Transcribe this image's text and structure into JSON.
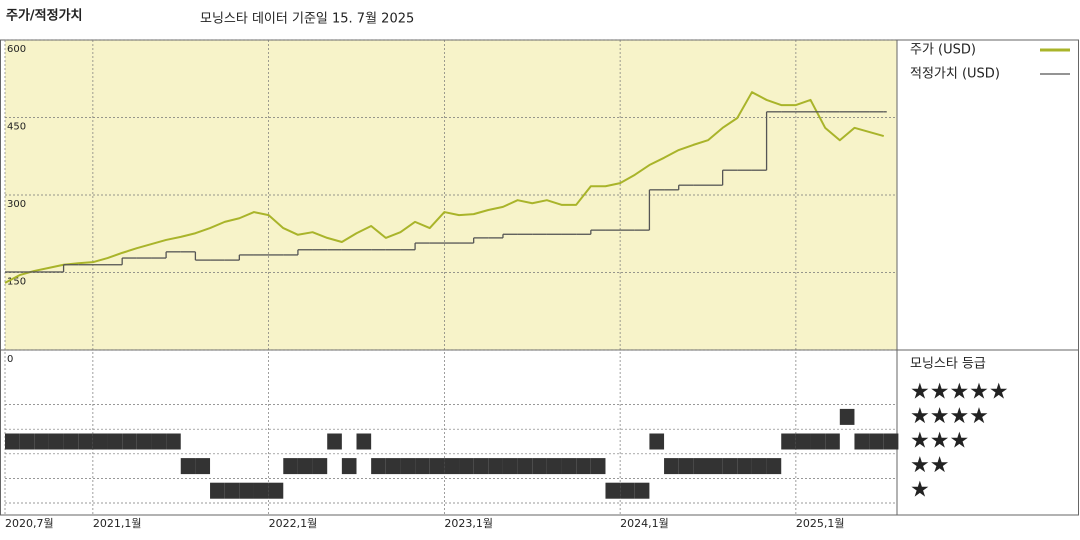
{
  "chart_data": {
    "type": "line",
    "title": "주가/적정가치",
    "subtitle": "모닝스타 데이터 기준일 15. 7월 2025",
    "x": [
      "2020-07",
      "2020-08",
      "2020-09",
      "2020-10",
      "2020-11",
      "2020-12",
      "2021-01",
      "2021-02",
      "2021-03",
      "2021-04",
      "2021-05",
      "2021-06",
      "2021-07",
      "2021-08",
      "2021-09",
      "2021-10",
      "2021-11",
      "2021-12",
      "2022-01",
      "2022-02",
      "2022-03",
      "2022-04",
      "2022-05",
      "2022-06",
      "2022-07",
      "2022-08",
      "2022-09",
      "2022-10",
      "2022-11",
      "2022-12",
      "2023-01",
      "2023-02",
      "2023-03",
      "2023-04",
      "2023-05",
      "2023-06",
      "2023-07",
      "2023-08",
      "2023-09",
      "2023-10",
      "2023-11",
      "2023-12",
      "2024-01",
      "2024-02",
      "2024-03",
      "2024-04",
      "2024-05",
      "2024-06",
      "2024-07",
      "2024-08",
      "2024-09",
      "2024-10",
      "2024-11",
      "2024-12",
      "2025-01",
      "2025-02",
      "2025-03",
      "2025-04",
      "2025-05",
      "2025-06",
      "2025-07"
    ],
    "series": [
      {
        "name": "주가 (USD)",
        "color": "#a9b42a",
        "values": [
          130,
          145,
          153,
          159,
          165,
          168,
          170,
          178,
          188,
          197,
          205,
          213,
          219,
          226,
          236,
          248,
          255,
          267,
          261,
          236,
          223,
          228,
          217,
          209,
          226,
          240,
          217,
          228,
          248,
          236,
          267,
          261,
          263,
          271,
          277,
          290,
          284,
          290,
          281,
          281,
          317,
          317,
          323,
          339,
          358,
          372,
          387,
          397,
          406,
          430,
          449,
          499,
          484,
          474,
          474,
          484,
          430,
          406,
          430,
          422,
          414
        ]
      },
      {
        "name": "적정가치 (USD)",
        "color": "#555555",
        "step": true,
        "values": [
          151,
          151,
          151,
          151,
          165,
          165,
          165,
          165,
          178,
          178,
          178,
          190,
          190,
          174,
          174,
          174,
          184,
          184,
          184,
          184,
          194,
          194,
          194,
          194,
          194,
          194,
          194,
          194,
          207,
          207,
          207,
          207,
          217,
          217,
          224,
          224,
          224,
          224,
          224,
          224,
          232,
          232,
          232,
          232,
          310,
          310,
          319,
          319,
          319,
          348,
          348,
          348,
          461,
          461,
          461,
          461,
          461,
          461,
          461,
          461,
          461
        ]
      }
    ],
    "ylim": [
      0,
      600
    ],
    "yticks": [
      0,
      150,
      300,
      450,
      600
    ],
    "xticks": [
      {
        "value": "2020-07",
        "label": "2020,7월"
      },
      {
        "value": "2021-01",
        "label": "2021,1월"
      },
      {
        "value": "2022-01",
        "label": "2022,1월"
      },
      {
        "value": "2023-01",
        "label": "2023,1월"
      },
      {
        "value": "2024-01",
        "label": "2024,1월"
      },
      {
        "value": "2025-01",
        "label": "2025,1월"
      }
    ],
    "grid": true,
    "background": "#f7f3c9",
    "rating": {
      "title": "모닝스타 등급",
      "levels": [
        "★★★★★",
        "★★★★",
        "★★★",
        "★★",
        "★"
      ],
      "color": "#333333",
      "values": [
        3,
        3,
        3,
        3,
        3,
        3,
        3,
        3,
        3,
        3,
        3,
        3,
        2,
        2,
        1,
        1,
        1,
        1,
        1,
        2,
        2,
        2,
        3,
        2,
        3,
        2,
        2,
        2,
        2,
        2,
        2,
        2,
        2,
        2,
        2,
        2,
        2,
        2,
        2,
        2,
        2,
        1,
        1,
        1,
        3,
        2,
        2,
        2,
        2,
        2,
        2,
        2,
        2,
        3,
        3,
        3,
        3,
        4,
        3,
        3,
        3
      ]
    }
  }
}
